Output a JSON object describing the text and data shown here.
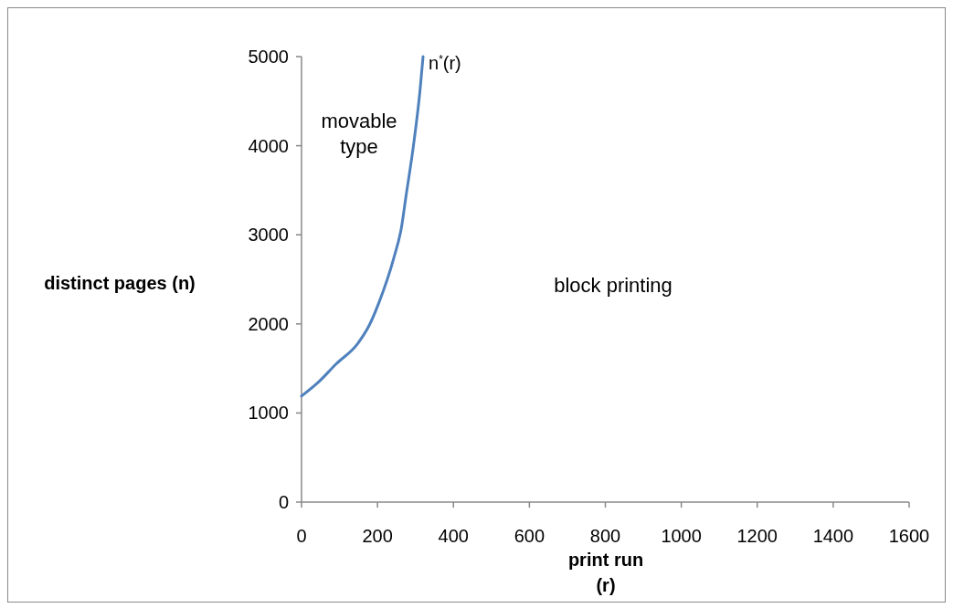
{
  "chart_data": {
    "type": "line",
    "xlabel": "print run\n(r)",
    "ylabel": "distinct pages (n)",
    "xlim": [
      0,
      1600
    ],
    "xticks": [
      0,
      200,
      400,
      600,
      800,
      1000,
      1200,
      1400,
      1600
    ],
    "ylim": [
      0,
      5000
    ],
    "yticks": [
      0,
      1000,
      2000,
      3000,
      4000,
      5000
    ],
    "grid": false,
    "marker": "none",
    "line_style": "solid",
    "series": [
      {
        "name": "n$^{*}$(r)",
        "color": "#4f81bd",
        "x": [
          0,
          43,
          91,
          148,
          179,
          203,
          243,
          263,
          275,
          295,
          312,
          320
        ],
        "values": [
          1190,
          1340,
          1550,
          1780,
          1990,
          2230,
          2740,
          3080,
          3430,
          4010,
          4620,
          5000
        ]
      }
    ],
    "annotations": [
      "movable type",
      "block printing"
    ]
  }
}
